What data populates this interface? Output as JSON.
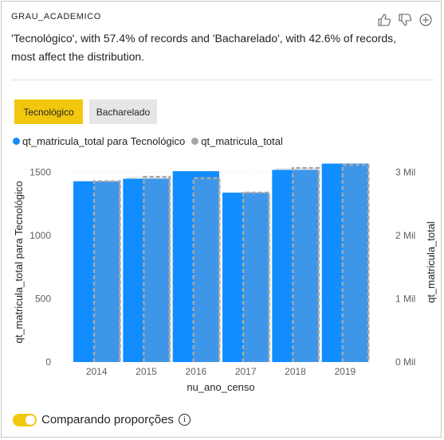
{
  "header": {
    "title": "GRAU_ACADEMICO",
    "icons": [
      "thumbs-up-icon",
      "thumbs-down-icon",
      "add-circle-icon"
    ]
  },
  "summary_text": "'Tecnológico', with 57.4% of records and 'Bacharelado', with 42.6% of records, most affect the distribution.",
  "segments": {
    "active": "Tecnológico",
    "inactive": "Bacharelado"
  },
  "legend": {
    "series1": "qt_matricula_total para Tecnológico",
    "series2": "qt_matricula_total"
  },
  "footer": {
    "toggle_label": "Comparando proporções",
    "toggle_on": true
  },
  "colors": {
    "accent": "#f2c80f",
    "primary_bar": "#118dff",
    "total_bar": "#e6e6e6",
    "legend_gray": "#a6a6a6"
  },
  "chart_data": {
    "type": "bar",
    "xlabel": "nu_ano_censo",
    "ylabel_left": "qt_matricula_total para Tecnológico",
    "ylabel_right": "qt_matricula_total",
    "categories": [
      "2014",
      "2015",
      "2016",
      "2017",
      "2018",
      "2019"
    ],
    "left_ticks": [
      "0",
      "500",
      "1000",
      "1500"
    ],
    "right_ticks": [
      "0 Mil",
      "1 Mil",
      "2 Mil",
      "3 Mil"
    ],
    "ylim_left": [
      0,
      1580
    ],
    "ylim_right": [
      0,
      3160
    ],
    "series": [
      {
        "name": "qt_matricula_total para Tecnológico",
        "values": [
          1430,
          1450,
          1510,
          1340,
          1520,
          1570
        ]
      },
      {
        "name": "qt_matricula_total",
        "values": [
          2860,
          2930,
          2910,
          2680,
          3070,
          3120
        ]
      }
    ],
    "grid": true
  }
}
